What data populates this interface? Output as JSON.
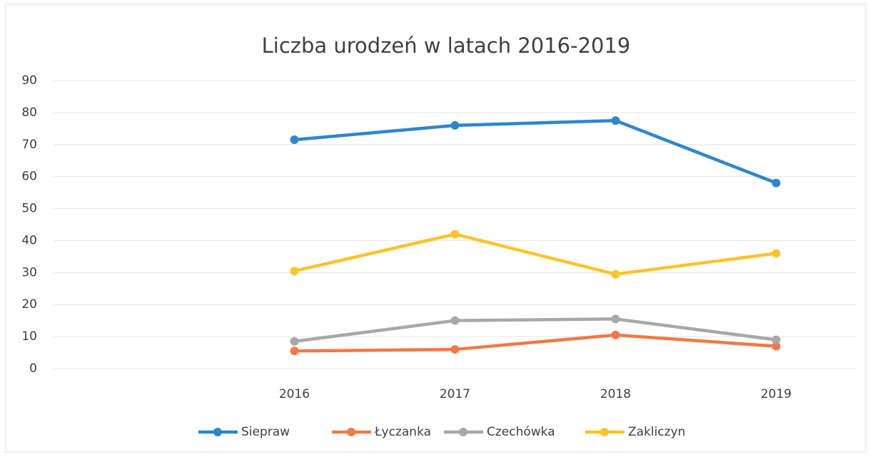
{
  "chart_data": {
    "type": "line",
    "title": "Liczba urodzeń w latach 2016-2019",
    "categories": [
      null,
      "2016",
      "2017",
      "2018",
      "2019"
    ],
    "series": [
      {
        "name": "Siepraw",
        "color": "#2e86cf",
        "values": [
          null,
          71.5,
          76,
          77.5,
          58
        ]
      },
      {
        "name": "Łyczanka",
        "color": "#f07a45",
        "values": [
          null,
          5.5,
          6,
          10.5,
          7
        ]
      },
      {
        "name": "Czechówka",
        "color": "#a8a8a8",
        "values": [
          null,
          8.5,
          15,
          15.5,
          9
        ]
      },
      {
        "name": "Zakliczyn",
        "color": "#fcc42a",
        "values": [
          null,
          30.5,
          42,
          29.5,
          36
        ]
      }
    ],
    "ylim": [
      0,
      90
    ],
    "yticks": [
      0,
      10,
      20,
      30,
      40,
      50,
      60,
      70,
      80,
      90
    ],
    "grid": true,
    "legend": "bottom"
  }
}
